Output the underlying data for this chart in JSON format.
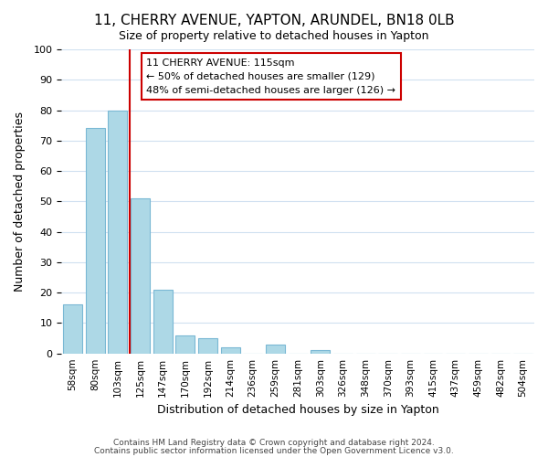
{
  "title": "11, CHERRY AVENUE, YAPTON, ARUNDEL, BN18 0LB",
  "subtitle": "Size of property relative to detached houses in Yapton",
  "xlabel": "Distribution of detached houses by size in Yapton",
  "ylabel": "Number of detached properties",
  "bin_labels": [
    "58sqm",
    "80sqm",
    "103sqm",
    "125sqm",
    "147sqm",
    "170sqm",
    "192sqm",
    "214sqm",
    "236sqm",
    "259sqm",
    "281sqm",
    "303sqm",
    "326sqm",
    "348sqm",
    "370sqm",
    "393sqm",
    "415sqm",
    "437sqm",
    "459sqm",
    "482sqm",
    "504sqm"
  ],
  "bar_values": [
    16,
    74,
    80,
    51,
    21,
    6,
    5,
    2,
    0,
    3,
    0,
    1,
    0,
    0,
    0,
    0,
    0,
    0,
    0,
    0,
    0
  ],
  "bar_color": "#add8e6",
  "bar_edge_color": "#7ab8d4",
  "ylim": [
    0,
    100
  ],
  "yticks": [
    0,
    10,
    20,
    30,
    40,
    50,
    60,
    70,
    80,
    90,
    100
  ],
  "vline_color": "#cc0000",
  "property_sqm": 115,
  "bin_start_sqm": [
    58,
    80,
    103,
    125,
    147,
    170,
    192,
    214,
    236,
    259,
    281,
    303,
    326,
    348,
    370,
    393,
    415,
    437,
    459,
    482,
    504
  ],
  "annotation_title": "11 CHERRY AVENUE: 115sqm",
  "annotation_line1": "← 50% of detached houses are smaller (129)",
  "annotation_line2": "48% of semi-detached houses are larger (126) →",
  "footer_line1": "Contains HM Land Registry data © Crown copyright and database right 2024.",
  "footer_line2": "Contains public sector information licensed under the Open Government Licence v3.0.",
  "background_color": "#ffffff",
  "grid_color": "#d0e0f0"
}
